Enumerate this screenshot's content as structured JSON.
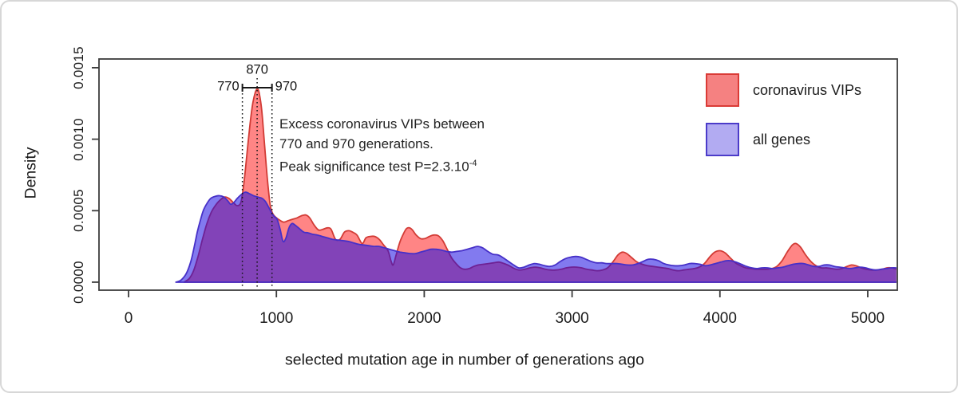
{
  "chart_data": {
    "type": "area",
    "subtype": "overlapping-density-plot",
    "xlabel": "selected mutation age in number of generations ago",
    "ylabel": "Density",
    "x_ticks": [
      0,
      1000,
      2000,
      3000,
      4000,
      5000
    ],
    "y_ticks": [
      "0.0000",
      "0.0005",
      "0.0010",
      "0.0015"
    ],
    "xlim": [
      -200,
      5200
    ],
    "ylim": [
      -5.6e-05,
      0.001561
    ],
    "grid": false,
    "legend_position": "top-right",
    "annotations": {
      "peak_age": 870,
      "interval": [
        770,
        970
      ],
      "note_line1": "Excess coronavirus VIPs between",
      "note_line2": "770 and 970 generations.",
      "note_line3_base": "Peak significance test P=2.3.10",
      "note_line3_sup": "-4"
    },
    "legend": [
      {
        "label": "coronavirus VIPs",
        "fill": "#f58181",
        "border": "#da3b36"
      },
      {
        "label": "all genes",
        "fill": "#b2abf2",
        "border": "#4b3bc9"
      }
    ],
    "series": [
      {
        "name": "coronavirus VIPs",
        "fill": "rgba(255,32,32,0.55)",
        "stroke": "#d23b35",
        "x": [
          375,
          410,
          440,
          470,
          500,
          530,
          560,
          590,
          620,
          650,
          680,
          710,
          735,
          760,
          780,
          800,
          820,
          840,
          858,
          870,
          882,
          900,
          920,
          940,
          958,
          975,
          995,
          1020,
          1050,
          1080,
          1110,
          1140,
          1170,
          1200,
          1225,
          1255,
          1285,
          1315,
          1345,
          1370,
          1400,
          1430,
          1460,
          1490,
          1515,
          1545,
          1580,
          1605,
          1635,
          1665,
          1695,
          1725,
          1755,
          1775,
          1790,
          1810,
          1835,
          1860,
          1880,
          1900,
          1920,
          1945,
          1975,
          2005,
          2035,
          2065,
          2095,
          2125,
          2155,
          2185,
          2215,
          2245,
          2275,
          2305,
          2335,
          2365,
          2400,
          2435,
          2470,
          2505,
          2540,
          2575,
          2610,
          2645,
          2680,
          2715,
          2750,
          2785,
          2820,
          2855,
          2890,
          2925,
          2960,
          2995,
          3030,
          3065,
          3100,
          3135,
          3170,
          3205,
          3240,
          3275,
          3310,
          3340,
          3370,
          3405,
          3440,
          3475,
          3510,
          3545,
          3580,
          3615,
          3650,
          3685,
          3720,
          3755,
          3790,
          3825,
          3860,
          3895,
          3930,
          3965,
          4000,
          4035,
          4070,
          4105,
          4140,
          4175,
          4210,
          4245,
          4280,
          4315,
          4350,
          4385,
          4420,
          4455,
          4490,
          4515,
          4545,
          4580,
          4615,
          4650,
          4685,
          4720,
          4755,
          4790,
          4825,
          4860,
          4890,
          4920,
          4955,
          4990,
          5025,
          5060,
          5095,
          5130,
          5160,
          5200
        ],
        "y_1e4": [
          0,
          0.25,
          0.8,
          1.8,
          3.0,
          4.1,
          4.9,
          5.4,
          5.75,
          5.95,
          5.85,
          5.55,
          5.35,
          5.6,
          6.9,
          8.9,
          10.9,
          12.5,
          13.3,
          13.5,
          13.3,
          12.1,
          9.6,
          7.1,
          5.4,
          4.8,
          4.55,
          4.35,
          4.2,
          4.3,
          4.4,
          4.5,
          4.65,
          4.7,
          4.5,
          4.0,
          3.65,
          3.7,
          3.8,
          3.7,
          3.0,
          3.0,
          3.5,
          3.6,
          3.5,
          3.3,
          2.7,
          3.1,
          3.2,
          3.2,
          3.0,
          2.6,
          2.2,
          1.5,
          1.2,
          1.9,
          2.8,
          3.4,
          3.75,
          3.8,
          3.65,
          3.3,
          3.05,
          3.05,
          3.2,
          3.3,
          3.25,
          2.9,
          2.3,
          1.7,
          1.3,
          1.0,
          0.9,
          0.95,
          1.1,
          1.2,
          1.25,
          1.3,
          1.35,
          1.4,
          1.3,
          1.15,
          0.95,
          0.85,
          0.9,
          1.0,
          1.05,
          1.0,
          0.9,
          0.85,
          0.85,
          0.9,
          1.0,
          1.05,
          1.05,
          1.0,
          0.9,
          0.85,
          0.8,
          0.85,
          1.0,
          1.4,
          1.9,
          2.1,
          2.0,
          1.7,
          1.4,
          1.25,
          1.15,
          1.1,
          1.05,
          1.0,
          0.95,
          0.85,
          0.8,
          0.85,
          0.9,
          0.95,
          1.05,
          1.3,
          1.75,
          2.1,
          2.2,
          2.05,
          1.7,
          1.35,
          1.15,
          1.0,
          0.95,
          0.9,
          0.9,
          0.9,
          0.95,
          1.1,
          1.5,
          2.1,
          2.6,
          2.7,
          2.45,
          1.9,
          1.45,
          1.15,
          1.0,
          1.0,
          0.95,
          0.9,
          0.95,
          1.1,
          1.2,
          1.15,
          1.0,
          0.9,
          0.85,
          0.85,
          0.9,
          1.0,
          1.0,
          0.9
        ]
      },
      {
        "name": "all genes",
        "fill": "rgba(28,12,226,0.55)",
        "stroke": "#4630c8",
        "x": [
          320,
          355,
          390,
          420,
          445,
          465,
          485,
          505,
          530,
          555,
          585,
          615,
          645,
          670,
          690,
          710,
          735,
          765,
          790,
          815,
          845,
          875,
          905,
          925,
          945,
          965,
          985,
          1005,
          1025,
          1045,
          1065,
          1085,
          1105,
          1125,
          1155,
          1185,
          1215,
          1245,
          1275,
          1310,
          1345,
          1380,
          1415,
          1450,
          1485,
          1520,
          1555,
          1590,
          1625,
          1660,
          1695,
          1730,
          1765,
          1800,
          1835,
          1870,
          1905,
          1940,
          1975,
          2010,
          2045,
          2080,
          2115,
          2150,
          2185,
          2220,
          2255,
          2290,
          2325,
          2360,
          2395,
          2430,
          2465,
          2500,
          2535,
          2570,
          2605,
          2640,
          2675,
          2710,
          2745,
          2780,
          2815,
          2850,
          2885,
          2920,
          2955,
          2990,
          3025,
          3060,
          3095,
          3130,
          3165,
          3200,
          3235,
          3270,
          3305,
          3340,
          3375,
          3410,
          3445,
          3480,
          3515,
          3550,
          3585,
          3620,
          3655,
          3690,
          3725,
          3760,
          3795,
          3830,
          3865,
          3900,
          3935,
          3970,
          4005,
          4040,
          4075,
          4110,
          4145,
          4180,
          4215,
          4250,
          4285,
          4320,
          4355,
          4390,
          4425,
          4460,
          4495,
          4530,
          4565,
          4600,
          4635,
          4670,
          4705,
          4740,
          4775,
          4810,
          4845,
          4880,
          4915,
          4950,
          4985,
          5020,
          5055,
          5090,
          5125,
          5160,
          5200
        ],
        "y_1e4": [
          0,
          0.15,
          0.6,
          1.4,
          2.5,
          3.5,
          4.3,
          5.0,
          5.5,
          5.85,
          6.0,
          6.05,
          5.95,
          5.7,
          5.45,
          5.55,
          5.85,
          6.15,
          6.3,
          6.2,
          6.05,
          5.95,
          5.85,
          5.65,
          5.3,
          4.9,
          4.6,
          4.4,
          3.7,
          2.85,
          3.1,
          3.8,
          4.1,
          4.0,
          3.75,
          3.5,
          3.45,
          3.35,
          3.3,
          3.2,
          3.1,
          3.0,
          2.95,
          2.9,
          2.85,
          2.75,
          2.65,
          2.6,
          2.55,
          2.5,
          2.5,
          2.4,
          2.3,
          2.2,
          2.1,
          2.05,
          2.0,
          2.0,
          2.1,
          2.2,
          2.3,
          2.3,
          2.25,
          2.15,
          2.1,
          2.15,
          2.2,
          2.3,
          2.4,
          2.5,
          2.4,
          2.15,
          1.95,
          1.9,
          1.7,
          1.45,
          1.2,
          1.0,
          1.05,
          1.2,
          1.3,
          1.25,
          1.15,
          1.1,
          1.2,
          1.45,
          1.65,
          1.75,
          1.8,
          1.75,
          1.6,
          1.45,
          1.35,
          1.35,
          1.3,
          1.3,
          1.3,
          1.25,
          1.2,
          1.2,
          1.3,
          1.45,
          1.6,
          1.6,
          1.5,
          1.3,
          1.2,
          1.15,
          1.15,
          1.2,
          1.3,
          1.3,
          1.25,
          1.15,
          1.2,
          1.3,
          1.4,
          1.5,
          1.5,
          1.4,
          1.25,
          1.1,
          1.0,
          0.95,
          1.0,
          1.0,
          0.95,
          1.0,
          1.05,
          1.15,
          1.25,
          1.3,
          1.3,
          1.2,
          1.1,
          1.1,
          1.2,
          1.2,
          1.1,
          1.05,
          1.0,
          0.95,
          1.0,
          1.05,
          1.0,
          0.9,
          0.85,
          0.9,
          0.95,
          1.0,
          1.0
        ]
      }
    ]
  }
}
